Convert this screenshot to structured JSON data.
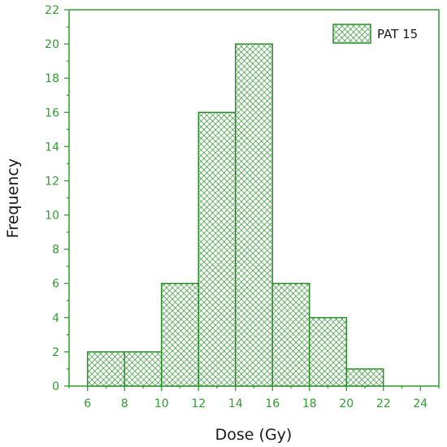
{
  "chart_data": {
    "type": "bar",
    "subtype": "histogram",
    "bin_edges": [
      6,
      8,
      10,
      12,
      14,
      16,
      18,
      20,
      22
    ],
    "series": [
      {
        "name": "PAT 15",
        "values": [
          2,
          2,
          6,
          16,
          20,
          6,
          4,
          1
        ]
      }
    ],
    "xlabel": "Dose (Gy)",
    "ylabel": "Frequency",
    "xlim": [
      5,
      25
    ],
    "ylim": [
      0,
      22
    ],
    "xticks": [
      "6",
      "8",
      "10",
      "12",
      "14",
      "16",
      "18",
      "20",
      "22",
      "24"
    ],
    "yticks": [
      "0",
      "2",
      "4",
      "6",
      "8",
      "10",
      "12",
      "14",
      "16",
      "18",
      "20",
      "22"
    ],
    "grid": false,
    "legend_position": "top-right",
    "colors": {
      "bar": "#228b22",
      "axis": "#2e9e2e",
      "pattern": "crosshatch"
    }
  }
}
